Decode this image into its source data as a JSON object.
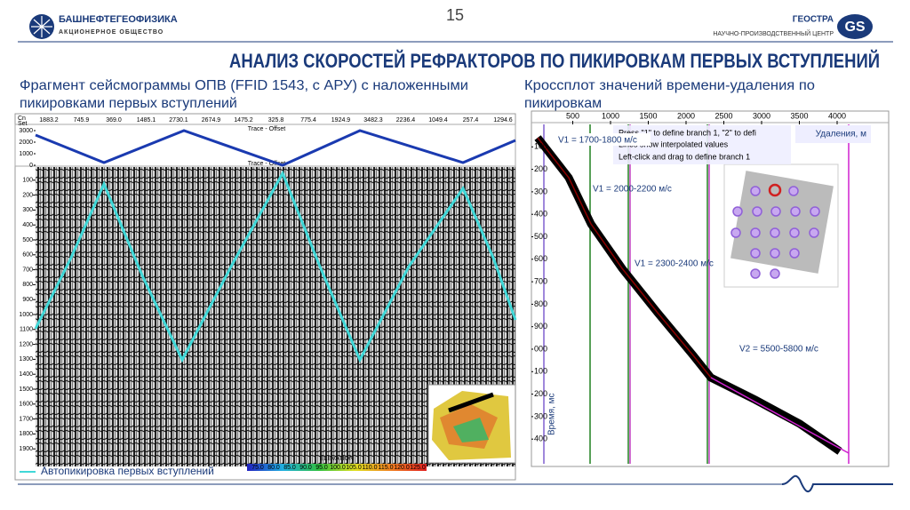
{
  "header": {
    "page_number": "15",
    "left_logo_title": "БАШНЕФТЕГЕОФИЗИКА",
    "left_logo_subtitle": "АКЦИОНЕРНОЕ ОБЩЕСТВО",
    "right_logo_title": "ГЕОСТРА",
    "right_logo_subtitle": "НАУЧНО-ПРОИЗВОДСТВЕННЫЙ ЦЕНТР",
    "logo_mark": "GS"
  },
  "title": "АНАЛИЗ СКОРОСТЕЙ РЕФРАКТОРОВ ПО ПИКИРОВКАМ ПЕРВЫХ ВСТУПЛЕНИЙ",
  "left_caption": [
    "Фрагмент сейсмограммы ОПВ (FFID 1543, с АРУ) с наложенными",
    "пикировками первых вступлений"
  ],
  "right_caption": [
    "Кроссплот значений времени-удаления по",
    "пикировкам"
  ],
  "seismogram": {
    "corner_label": [
      "Cn",
      "Set"
    ],
    "offsets": [
      "1883.2",
      "745.9",
      "369.0",
      "1485.1",
      "2730.1",
      "2674.9",
      "1475.2",
      "325.8",
      "775.4",
      "1924.9",
      "3482.3",
      "2236.4",
      "1049.4",
      "257.4",
      "1294.6"
    ],
    "strip_labels": [
      "Trace - Offset",
      "Trace - Offset"
    ],
    "offset_ticks": [
      3000,
      2000,
      1000,
      0
    ],
    "time_ticks": [
      100,
      200,
      300,
      400,
      500,
      600,
      700,
      800,
      900,
      1000,
      1100,
      1200,
      1300,
      1400,
      1500,
      1600,
      1700,
      1800,
      1900
    ],
    "legend": "Автопикировка первых вступлений",
    "colorbar_title": "ELEVATION",
    "colorbar_ticks": [
      "75.0",
      "80.0",
      "85.0",
      "90.0",
      "95.0",
      "100.0",
      "105.0",
      "110.0",
      "115.0",
      "120.0",
      "125.0"
    ]
  },
  "crossplot": {
    "xticks": [
      500,
      1000,
      1500,
      2000,
      2500,
      3000,
      3500,
      4000
    ],
    "yticks": [
      100,
      200,
      300,
      400,
      500,
      600,
      700,
      800,
      900,
      {
        "value": 1000,
        "label": "000"
      },
      {
        "value": 1100,
        "label": "100"
      },
      {
        "value": 1200,
        "label": "200"
      },
      {
        "value": 1300,
        "label": "300"
      },
      {
        "value": 1400,
        "label": "400"
      }
    ],
    "x_label": "Удаления, м",
    "y_label": "Время, мс",
    "hints": [
      "Press \"1\" to define branch 1, \"2\" to defi",
      "Lines show interpolated values",
      "Left-click and drag to define branch 1"
    ],
    "annotations": [
      "V1 = 1700-1800 м/с",
      "V1 = 2000-2200 м/с",
      "V1 = 2300-2400 м/с",
      "V2 = 5500-5800 м/с"
    ]
  }
}
